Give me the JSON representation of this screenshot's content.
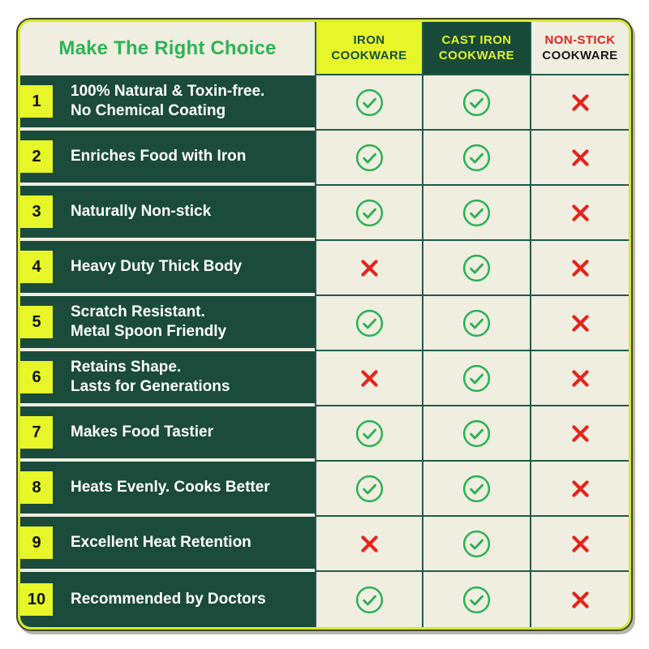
{
  "colors": {
    "card_border": "#d9e831",
    "card_outline": "#41471d",
    "cream_bg": "#efeee0",
    "dark_green": "#1b4b3b",
    "grid_line": "#205b4b",
    "title_green": "#2eb454",
    "badge_yellow": "#e6f628",
    "iron_header_bg": "#e6f628",
    "iron_header_text": "#17503a",
    "cast_header_bg": "#184a39",
    "cast_header_text": "#ddf22b",
    "nonstick_red": "#e7231d",
    "nonstick_black": "#191919",
    "check_green": "#2bb153",
    "cross_red": "#e7231d",
    "label_text": "#ffffff"
  },
  "table": {
    "title": "Make The Right Choice",
    "columns": [
      {
        "line1": "IRON",
        "line2": "COOKWARE"
      },
      {
        "line1": "CAST IRON",
        "line2": "COOKWARE"
      },
      {
        "line1": "NON-STICK",
        "line2": "COOKWARE"
      }
    ],
    "rows": [
      {
        "num": "1",
        "lines": [
          "100% Natural & Toxin-free.",
          "No Chemical Coating"
        ],
        "values": [
          "check",
          "check",
          "cross"
        ]
      },
      {
        "num": "2",
        "lines": [
          "Enriches Food with Iron"
        ],
        "values": [
          "check",
          "check",
          "cross"
        ]
      },
      {
        "num": "3",
        "lines": [
          "Naturally Non-stick"
        ],
        "values": [
          "check",
          "check",
          "cross"
        ]
      },
      {
        "num": "4",
        "lines": [
          "Heavy Duty Thick Body"
        ],
        "values": [
          "cross",
          "check",
          "cross"
        ]
      },
      {
        "num": "5",
        "lines": [
          "Scratch Resistant.",
          "Metal Spoon Friendly"
        ],
        "values": [
          "check",
          "check",
          "cross"
        ]
      },
      {
        "num": "6",
        "lines": [
          "Retains Shape.",
          "Lasts for Generations"
        ],
        "values": [
          "cross",
          "check",
          "cross"
        ]
      },
      {
        "num": "7",
        "lines": [
          "Makes Food Tastier"
        ],
        "values": [
          "check",
          "check",
          "cross"
        ]
      },
      {
        "num": "8",
        "lines": [
          "Heats Evenly. Cooks Better"
        ],
        "values": [
          "check",
          "check",
          "cross"
        ]
      },
      {
        "num": "9",
        "lines": [
          "Excellent Heat Retention"
        ],
        "values": [
          "cross",
          "check",
          "cross"
        ]
      },
      {
        "num": "10",
        "lines": [
          "Recommended by Doctors"
        ],
        "values": [
          "check",
          "check",
          "cross"
        ]
      }
    ]
  },
  "icons": {
    "check": "circled-check-icon",
    "cross": "x-mark-icon"
  },
  "chart_data": {
    "type": "table",
    "title": "Make The Right Choice",
    "categories": [
      "100% Natural & Toxin-free. No Chemical Coating",
      "Enriches Food with Iron",
      "Naturally Non-stick",
      "Heavy Duty Thick Body",
      "Scratch Resistant. Metal Spoon Friendly",
      "Retains Shape. Lasts for Generations",
      "Makes Food Tastier",
      "Heats Evenly. Cooks Better",
      "Excellent Heat Retention",
      "Recommended by Doctors"
    ],
    "series": [
      {
        "name": "IRON COOKWARE",
        "values": [
          true,
          true,
          true,
          false,
          true,
          false,
          true,
          true,
          false,
          true
        ]
      },
      {
        "name": "CAST IRON COOKWARE",
        "values": [
          true,
          true,
          true,
          true,
          true,
          true,
          true,
          true,
          true,
          true
        ]
      },
      {
        "name": "NON-STICK COOKWARE",
        "values": [
          false,
          false,
          false,
          false,
          false,
          false,
          false,
          false,
          false,
          false
        ]
      }
    ]
  }
}
